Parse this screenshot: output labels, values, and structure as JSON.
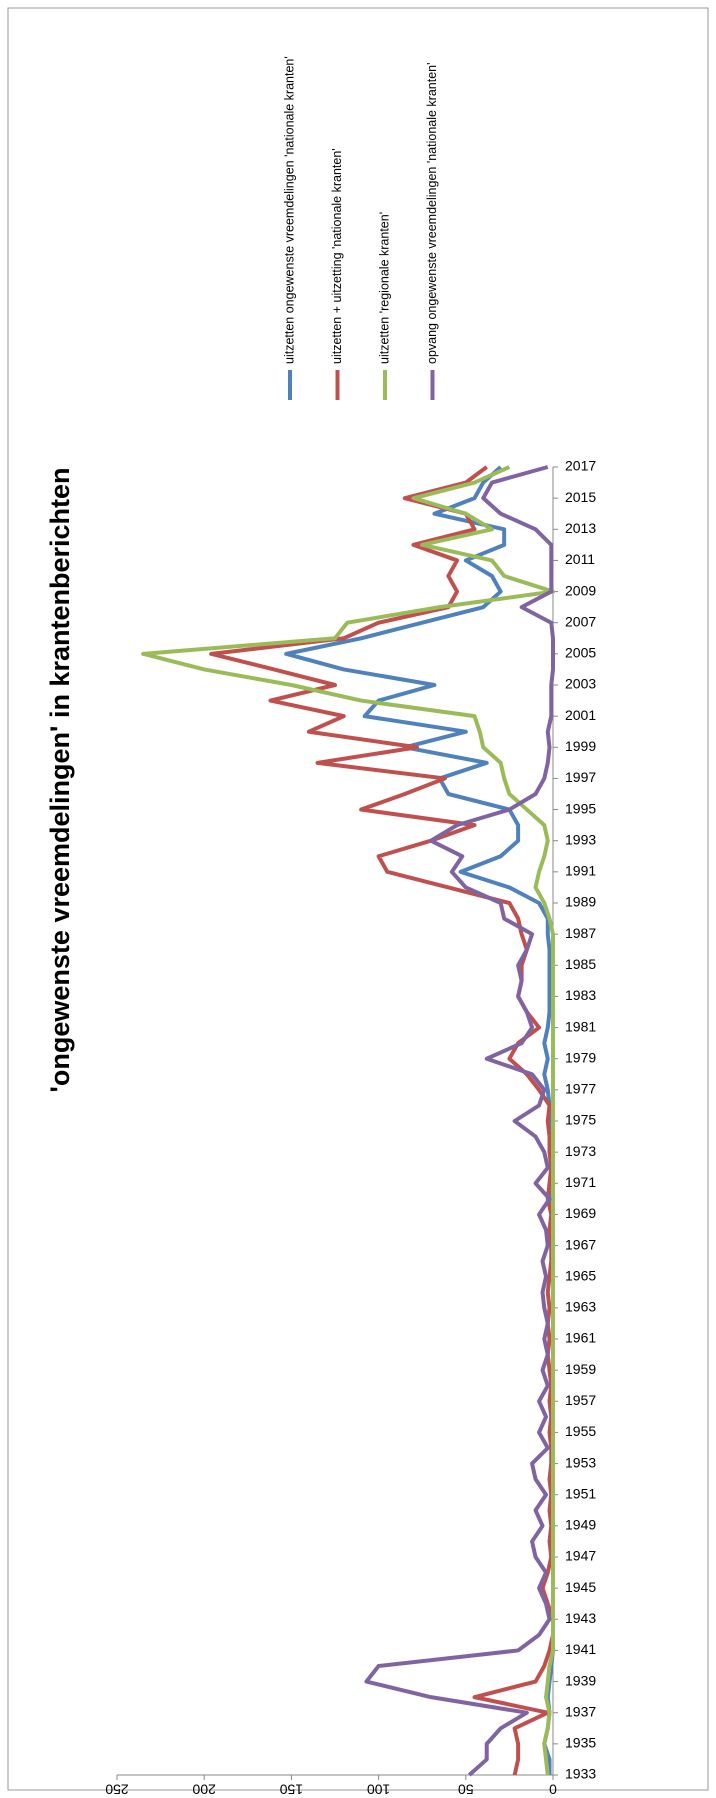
{
  "chart_data": {
    "type": "line",
    "title": "'ongewenste vreemdelingen' in krantenberichten",
    "x": [
      1933,
      1934,
      1935,
      1936,
      1937,
      1938,
      1939,
      1940,
      1941,
      1942,
      1943,
      1944,
      1945,
      1946,
      1947,
      1948,
      1949,
      1950,
      1951,
      1952,
      1953,
      1954,
      1955,
      1956,
      1957,
      1958,
      1959,
      1960,
      1961,
      1962,
      1963,
      1964,
      1965,
      1966,
      1967,
      1968,
      1969,
      1970,
      1971,
      1972,
      1973,
      1974,
      1975,
      1976,
      1977,
      1978,
      1979,
      1980,
      1981,
      1982,
      1983,
      1984,
      1985,
      1986,
      1987,
      1988,
      1989,
      1990,
      1991,
      1992,
      1993,
      1994,
      1995,
      1996,
      1997,
      1998,
      1999,
      2000,
      2001,
      2002,
      2003,
      2004,
      2005,
      2006,
      2007,
      2008,
      2009,
      2010,
      2011,
      2012,
      2013,
      2014,
      2015,
      2016,
      2017
    ],
    "xlim": [
      1933,
      2017
    ],
    "xticks": [
      1933,
      1935,
      1937,
      1939,
      1941,
      1943,
      1945,
      1947,
      1949,
      1951,
      1953,
      1955,
      1957,
      1959,
      1961,
      1963,
      1965,
      1967,
      1969,
      1971,
      1973,
      1975,
      1977,
      1979,
      1981,
      1983,
      1985,
      1987,
      1989,
      1991,
      1993,
      1995,
      1997,
      1999,
      2001,
      2003,
      2005,
      2007,
      2009,
      2011,
      2013,
      2015,
      2017
    ],
    "ylim": [
      0,
      250
    ],
    "yticks": [
      0,
      50,
      100,
      150,
      200,
      250
    ],
    "grid": false,
    "legend": "right",
    "series": [
      {
        "name": "uitzetten ongewenste vreemdelingen 'nationale kranten'",
        "color": "#4f81bd",
        "values": [
          2,
          2,
          5,
          3,
          2,
          3,
          2,
          1,
          0,
          0,
          0,
          0,
          0,
          0,
          0,
          1,
          0,
          0,
          1,
          0,
          0,
          0,
          0,
          0,
          0,
          0,
          0,
          0,
          0,
          0,
          0,
          0,
          0,
          0,
          0,
          0,
          0,
          1,
          0,
          0,
          0,
          0,
          1,
          2,
          3,
          5,
          3,
          5,
          3,
          2,
          2,
          2,
          2,
          2,
          3,
          3,
          8,
          25,
          53,
          30,
          20,
          20,
          25,
          60,
          65,
          38,
          85,
          50,
          108,
          100,
          68,
          120,
          153,
          110,
          75,
          40,
          30,
          35,
          50,
          28,
          28,
          68,
          45,
          40,
          30
        ]
      },
      {
        "name": "uitzetten + uitzetting 'nationale kranten'",
        "color": "#c0504d",
        "values": [
          22,
          20,
          20,
          22,
          3,
          45,
          10,
          5,
          2,
          0,
          0,
          3,
          6,
          3,
          1,
          2,
          1,
          2,
          1,
          2,
          1,
          1,
          2,
          1,
          2,
          1,
          2,
          3,
          2,
          3,
          2,
          3,
          2,
          1,
          1,
          2,
          1,
          3,
          2,
          1,
          2,
          2,
          3,
          2,
          8,
          15,
          25,
          20,
          8,
          15,
          20,
          18,
          18,
          15,
          18,
          20,
          25,
          60,
          95,
          100,
          70,
          45,
          110,
          85,
          62,
          135,
          78,
          140,
          120,
          162,
          125,
          160,
          196,
          120,
          100,
          60,
          55,
          60,
          55,
          80,
          45,
          50,
          85,
          50,
          38
        ]
      },
      {
        "name": "uitzetten 'regionale kranten'",
        "color": "#9bbb59",
        "values": [
          3,
          4,
          5,
          3,
          2,
          4,
          3,
          2,
          0,
          0,
          0,
          0,
          0,
          0,
          0,
          0,
          0,
          0,
          0,
          0,
          0,
          0,
          0,
          0,
          0,
          0,
          0,
          0,
          0,
          0,
          0,
          0,
          0,
          0,
          0,
          0,
          0,
          0,
          0,
          0,
          0,
          0,
          0,
          0,
          0,
          0,
          0,
          0,
          0,
          0,
          0,
          0,
          0,
          0,
          0,
          2,
          5,
          10,
          8,
          5,
          3,
          5,
          15,
          25,
          28,
          30,
          40,
          42,
          45,
          110,
          150,
          200,
          235,
          125,
          118,
          65,
          0,
          28,
          35,
          75,
          35,
          50,
          80,
          45,
          25
        ]
      },
      {
        "name": "opvang ongewenste vreemdelingen 'nationale kranten'",
        "color": "#8064a2",
        "values": [
          48,
          38,
          38,
          30,
          15,
          70,
          107,
          100,
          20,
          8,
          2,
          4,
          8,
          4,
          10,
          12,
          6,
          10,
          4,
          10,
          12,
          3,
          8,
          4,
          8,
          3,
          6,
          3,
          5,
          3,
          5,
          6,
          4,
          6,
          3,
          4,
          8,
          2,
          10,
          3,
          5,
          10,
          22,
          8,
          5,
          12,
          38,
          18,
          12,
          15,
          20,
          18,
          20,
          15,
          12,
          28,
          30,
          50,
          58,
          52,
          70,
          55,
          25,
          10,
          5,
          3,
          2,
          3,
          1,
          1,
          1,
          0,
          0,
          0,
          1,
          18,
          1,
          1,
          1,
          1,
          10,
          30,
          40,
          35,
          3
        ]
      }
    ]
  }
}
